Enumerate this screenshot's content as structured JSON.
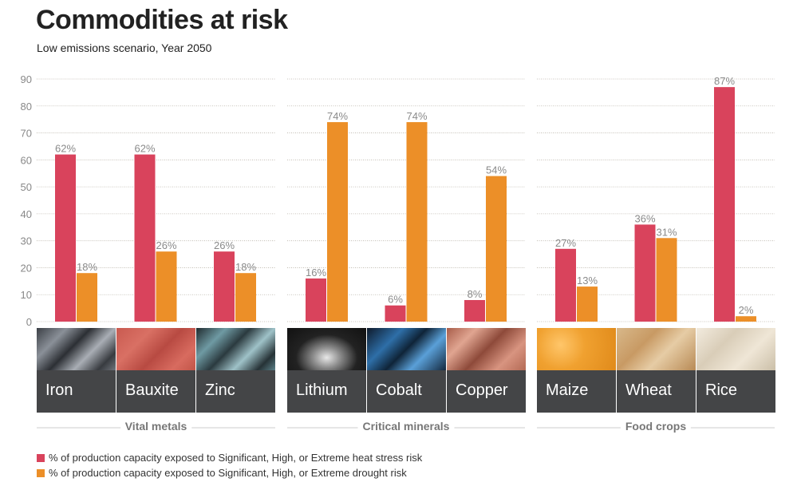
{
  "title": "Commodities at risk",
  "subtitle": "Low emissions scenario, Year 2050",
  "colors": {
    "heat": "#d9435c",
    "drought": "#ec8f28",
    "label_bg": "#444547"
  },
  "legend": {
    "heat": "% of production capacity exposed to Significant, High, or Extreme heat stress risk",
    "drought": "% of production capacity exposed to Significant, High, or Extreme drought risk"
  },
  "chart_data": {
    "type": "bar",
    "title": "Commodities at risk",
    "subtitle": "Low emissions scenario, Year 2050",
    "xlabel": "",
    "ylabel": "",
    "ylim": [
      0,
      90
    ],
    "yticks": [
      0,
      10,
      20,
      30,
      40,
      50,
      60,
      70,
      80,
      90
    ],
    "grid": true,
    "legend_position": "bottom-left",
    "groups": [
      {
        "name": "Vital metals",
        "categories": [
          "Iron",
          "Bauxite",
          "Zinc"
        ]
      },
      {
        "name": "Critical minerals",
        "categories": [
          "Lithium",
          "Cobalt",
          "Copper"
        ]
      },
      {
        "name": "Food crops",
        "categories": [
          "Maize",
          "Wheat",
          "Rice"
        ]
      }
    ],
    "categories": [
      "Iron",
      "Bauxite",
      "Zinc",
      "Lithium",
      "Cobalt",
      "Copper",
      "Maize",
      "Wheat",
      "Rice"
    ],
    "series": [
      {
        "name": "% of production capacity exposed to Significant, High, or Extreme heat stress risk",
        "key": "heat",
        "values": [
          62,
          62,
          26,
          16,
          6,
          8,
          27,
          36,
          87
        ],
        "labels": [
          "62%",
          "62%",
          "26%",
          "16%",
          "6%",
          "8%",
          "27%",
          "36%",
          "87%"
        ]
      },
      {
        "name": "% of production capacity exposed to Significant, High, or Extreme drought risk",
        "key": "drought",
        "values": [
          18,
          26,
          18,
          74,
          74,
          54,
          13,
          31,
          2
        ],
        "labels": [
          "18%",
          "26%",
          "18%",
          "74%",
          "74%",
          "54%",
          "13%",
          "31%",
          "2%"
        ]
      }
    ]
  }
}
